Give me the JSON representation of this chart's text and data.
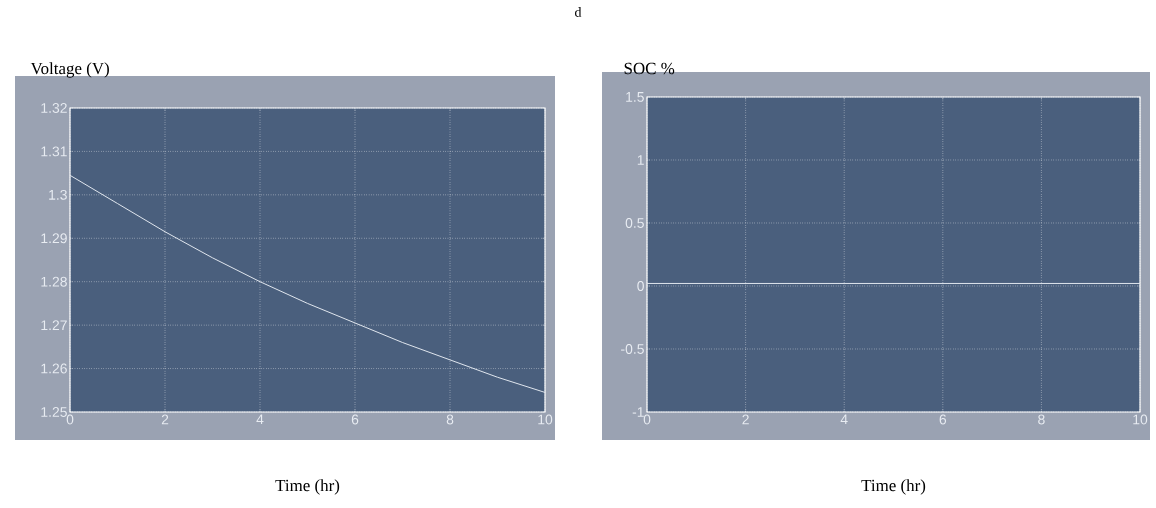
{
  "chart_data": [
    {
      "type": "line",
      "title": "Voltage (V)",
      "xlabel": "Time (hr)",
      "annotations": [
        "d"
      ],
      "x": [
        0,
        1,
        2,
        3,
        4,
        5,
        6,
        7,
        8,
        9,
        10
      ],
      "values": [
        1.3045,
        1.298,
        1.2915,
        1.2855,
        1.28,
        1.275,
        1.2705,
        1.266,
        1.262,
        1.258,
        1.2545
      ],
      "color": "#e0e6ee",
      "xlim": [
        0,
        10
      ],
      "ylim": [
        1.25,
        1.32
      ],
      "xticks": [
        0,
        2,
        4,
        6,
        8,
        10
      ],
      "yticks": [
        1.25,
        1.26,
        1.27,
        1.28,
        1.29,
        1.3,
        1.31,
        1.32
      ],
      "grid": true
    },
    {
      "type": "line",
      "title": "SOC %",
      "xlabel": "Time (hr)",
      "x": [
        0,
        10
      ],
      "values": [
        0.02,
        0.02
      ],
      "color": "#e0e6ee",
      "xlim": [
        0,
        10
      ],
      "ylim": [
        -1,
        1.5
      ],
      "xticks": [
        0,
        2,
        4,
        6,
        8,
        10
      ],
      "yticks": [
        -1,
        -0.5,
        0,
        0.5,
        1,
        1.5
      ],
      "grid": true
    }
  ]
}
